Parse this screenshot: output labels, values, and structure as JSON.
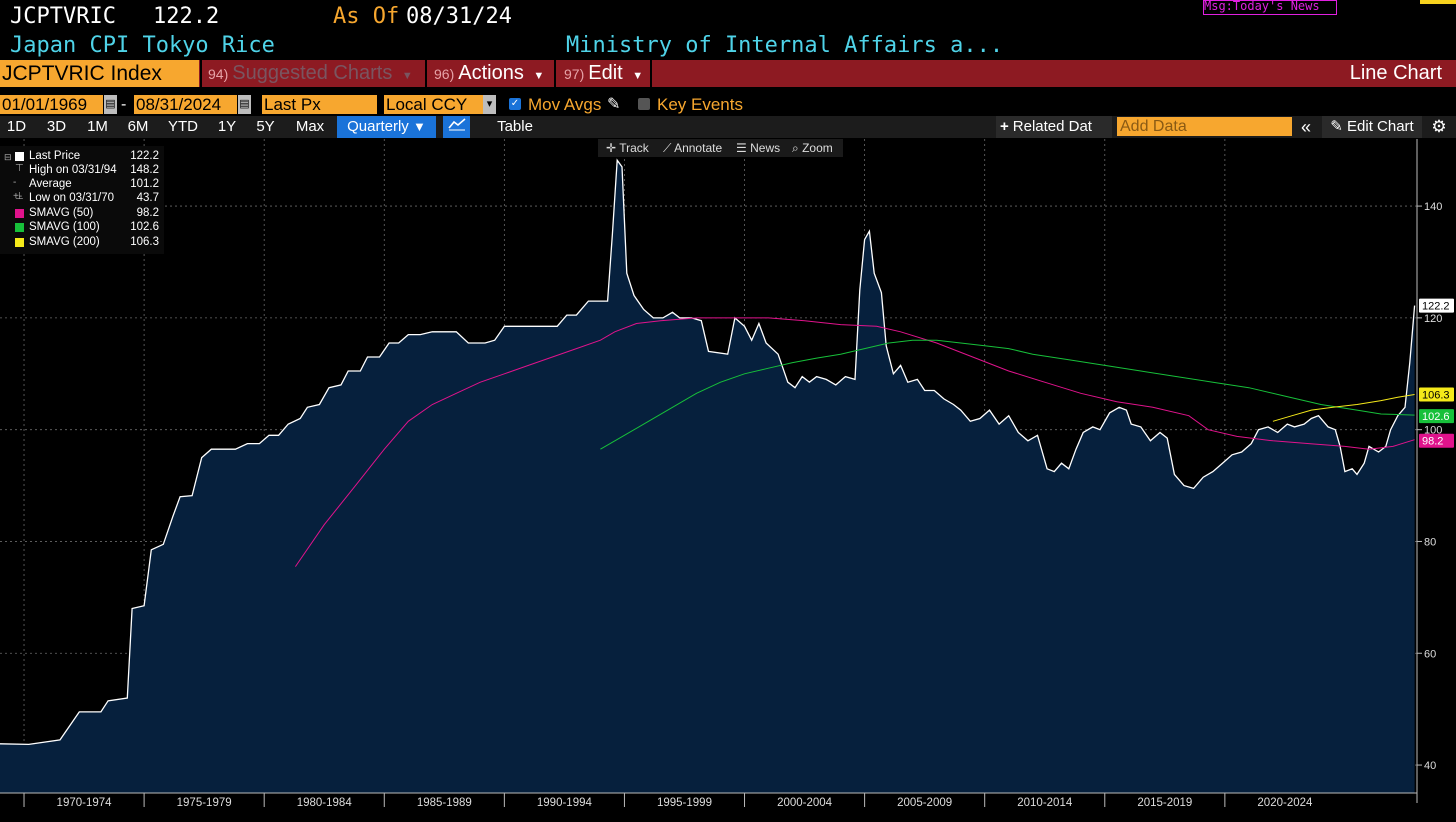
{
  "header": {
    "ticker": "JCPTVRIC",
    "last_value": "122.2",
    "as_of_label": "As Of",
    "as_of_date": "08/31/24",
    "description": "Japan CPI Tokyo Rice",
    "source": "Ministry of Internal Affairs a...",
    "message": "Msg:Today's News"
  },
  "toolbar": {
    "index_label": "JCPTVRIC Index",
    "suggested_num": "94)",
    "suggested_label": "Suggested Charts",
    "actions_num": "96)",
    "actions_label": "Actions",
    "edit_num": "97)",
    "edit_label": "Edit",
    "chart_type_label": "Line Chart"
  },
  "settings": {
    "start_date": "01/01/1969",
    "end_date": "08/31/2024",
    "field": "Last Px",
    "currency": "Local CCY",
    "mov_avgs_label": "Mov Avgs",
    "key_events_label": "Key Events"
  },
  "range_buttons": [
    "1D",
    "3D",
    "1M",
    "6M",
    "YTD",
    "1Y",
    "5Y",
    "Max"
  ],
  "frequency": "Quarterly",
  "table_label": "Table",
  "related_data_label": "Related Dat",
  "add_data_placeholder": "Add Data",
  "edit_chart_label": "Edit Chart",
  "chart_tools": {
    "track": "Track",
    "annotate": "Annotate",
    "news": "News",
    "zoom": "Zoom"
  },
  "legend": [
    {
      "label": "Last Price",
      "value": "122.2",
      "color": "#ffffff"
    },
    {
      "label": "High on 03/31/94",
      "value": "148.2",
      "color": ""
    },
    {
      "label": "Average",
      "value": "101.2",
      "color": ""
    },
    {
      "label": "Low on 03/31/70",
      "value": "43.7",
      "color": ""
    },
    {
      "label": "SMAVG (50)",
      "value": "98.2",
      "color": "#e0138c"
    },
    {
      "label": "SMAVG (100)",
      "value": "102.6",
      "color": "#17c03a"
    },
    {
      "label": "SMAVG (200)",
      "value": "106.3",
      "color": "#f5e91a"
    }
  ],
  "colors": {
    "area_fill": "#06203d",
    "price_line": "#ffffff",
    "sma50": "#e0138c",
    "sma100": "#17c03a",
    "sma200": "#f5e91a",
    "accent_orange": "#f7a72f",
    "toolbar_red": "#8d1a22"
  },
  "chart_data": {
    "type": "area",
    "ylim": [
      35,
      152
    ],
    "xlim": [
      1969.0,
      2025.9
    ],
    "y_ticks": [
      40,
      60,
      80,
      100,
      120,
      140
    ],
    "x_tick_labels": [
      "1970-1974",
      "1975-1979",
      "1980-1984",
      "1985-1989",
      "1990-1994",
      "1995-1999",
      "2000-2004",
      "2005-2009",
      "2010-2014",
      "2015-2019",
      "2020-2024"
    ],
    "x_tick_ranges": [
      [
        1970,
        1975
      ],
      [
        1975,
        1980
      ],
      [
        1980,
        1985
      ],
      [
        1985,
        1990
      ],
      [
        1990,
        1995
      ],
      [
        1995,
        2000
      ],
      [
        2000,
        2005
      ],
      [
        2005,
        2010
      ],
      [
        2010,
        2015
      ],
      [
        2015,
        2020
      ],
      [
        2020,
        2025
      ]
    ],
    "grid": true,
    "end_labels": [
      {
        "value": 122.2,
        "text": "122.2",
        "series": "Last Price"
      },
      {
        "value": 106.3,
        "text": "106.3",
        "series": "SMAVG (200)"
      },
      {
        "value": 102.6,
        "text": "102.6",
        "series": "SMAVG (100)"
      },
      {
        "value": 98.2,
        "text": "98.2",
        "series": "SMAVG (50)"
      }
    ],
    "series": [
      {
        "name": "Last Price",
        "points": [
          [
            1969.0,
            43.8
          ],
          [
            1970.2,
            43.7
          ],
          [
            1971.5,
            44.5
          ],
          [
            1972.3,
            49.5
          ],
          [
            1973.2,
            49.5
          ],
          [
            1973.5,
            51.5
          ],
          [
            1974.3,
            52.0
          ],
          [
            1974.5,
            68.0
          ],
          [
            1975.0,
            68.5
          ],
          [
            1975.3,
            78.5
          ],
          [
            1975.8,
            79.5
          ],
          [
            1976.2,
            84.5
          ],
          [
            1976.5,
            88.0
          ],
          [
            1977.0,
            88.2
          ],
          [
            1977.4,
            95.0
          ],
          [
            1977.8,
            96.5
          ],
          [
            1978.8,
            96.5
          ],
          [
            1979.3,
            97.5
          ],
          [
            1979.8,
            97.5
          ],
          [
            1980.2,
            99.0
          ],
          [
            1980.6,
            99.0
          ],
          [
            1981.0,
            101.0
          ],
          [
            1981.5,
            102.0
          ],
          [
            1981.8,
            104.0
          ],
          [
            1982.3,
            104.5
          ],
          [
            1982.7,
            107.5
          ],
          [
            1983.2,
            108.0
          ],
          [
            1983.5,
            110.5
          ],
          [
            1984.0,
            110.5
          ],
          [
            1984.3,
            113.0
          ],
          [
            1984.8,
            113.0
          ],
          [
            1985.2,
            115.5
          ],
          [
            1985.6,
            115.5
          ],
          [
            1986.0,
            117.0
          ],
          [
            1986.5,
            117.0
          ],
          [
            1987.0,
            117.5
          ],
          [
            1988.0,
            117.5
          ],
          [
            1988.5,
            115.5
          ],
          [
            1989.2,
            115.5
          ],
          [
            1989.6,
            116.0
          ],
          [
            1990.0,
            118.5
          ],
          [
            1990.5,
            118.5
          ],
          [
            1991.5,
            118.5
          ],
          [
            1992.2,
            118.5
          ],
          [
            1992.6,
            120.5
          ],
          [
            1993.0,
            120.5
          ],
          [
            1993.5,
            123.0
          ],
          [
            1994.3,
            123.0
          ],
          [
            1994.5,
            135.0
          ],
          [
            1994.7,
            148.2
          ],
          [
            1994.9,
            147.0
          ],
          [
            1995.1,
            128.0
          ],
          [
            1995.4,
            124.0
          ],
          [
            1995.8,
            121.5
          ],
          [
            1996.2,
            120.0
          ],
          [
            1996.6,
            120.0
          ],
          [
            1997.0,
            121.0
          ],
          [
            1997.3,
            120.0
          ],
          [
            1997.8,
            120.0
          ],
          [
            1998.2,
            119.5
          ],
          [
            1998.5,
            114.0
          ],
          [
            1999.3,
            113.5
          ],
          [
            1999.6,
            120.0
          ],
          [
            2000.0,
            118.5
          ],
          [
            2000.3,
            116.0
          ],
          [
            2000.6,
            119.0
          ],
          [
            2000.9,
            115.5
          ],
          [
            2001.4,
            113.5
          ],
          [
            2001.8,
            108.5
          ],
          [
            2002.1,
            107.5
          ],
          [
            2002.4,
            109.5
          ],
          [
            2002.7,
            108.5
          ],
          [
            2003.0,
            109.5
          ],
          [
            2003.4,
            109.0
          ],
          [
            2003.8,
            108.0
          ],
          [
            2004.2,
            109.5
          ],
          [
            2004.6,
            109.0
          ],
          [
            2004.8,
            125.0
          ],
          [
            2005.0,
            134.0
          ],
          [
            2005.2,
            135.5
          ],
          [
            2005.4,
            128.0
          ],
          [
            2005.7,
            124.5
          ],
          [
            2005.9,
            115.0
          ],
          [
            2006.2,
            110.0
          ],
          [
            2006.5,
            111.5
          ],
          [
            2006.8,
            108.5
          ],
          [
            2007.2,
            109.0
          ],
          [
            2007.5,
            107.0
          ],
          [
            2007.9,
            107.0
          ],
          [
            2008.3,
            105.5
          ],
          [
            2008.7,
            104.5
          ],
          [
            2009.0,
            103.5
          ],
          [
            2009.4,
            101.5
          ],
          [
            2009.8,
            102.0
          ],
          [
            2010.2,
            103.5
          ],
          [
            2010.6,
            101.0
          ],
          [
            2011.0,
            102.5
          ],
          [
            2011.4,
            99.5
          ],
          [
            2011.8,
            98.0
          ],
          [
            2012.2,
            99.0
          ],
          [
            2012.6,
            93.0
          ],
          [
            2012.9,
            92.5
          ],
          [
            2013.2,
            94.0
          ],
          [
            2013.5,
            93.0
          ],
          [
            2013.8,
            96.5
          ],
          [
            2014.1,
            99.5
          ],
          [
            2014.5,
            100.5
          ],
          [
            2014.8,
            100.0
          ],
          [
            2015.2,
            103.0
          ],
          [
            2015.6,
            104.0
          ],
          [
            2015.9,
            103.5
          ],
          [
            2016.1,
            101.0
          ],
          [
            2016.5,
            100.5
          ],
          [
            2016.9,
            98.0
          ],
          [
            2017.3,
            99.5
          ],
          [
            2017.6,
            98.5
          ],
          [
            2017.9,
            92.0
          ],
          [
            2018.3,
            90.0
          ],
          [
            2018.7,
            89.5
          ],
          [
            2019.1,
            91.5
          ],
          [
            2019.5,
            92.5
          ],
          [
            2019.9,
            94.0
          ],
          [
            2020.3,
            95.5
          ],
          [
            2020.7,
            96.0
          ],
          [
            2021.1,
            97.5
          ],
          [
            2021.4,
            100.0
          ],
          [
            2021.8,
            100.5
          ],
          [
            2022.2,
            99.5
          ],
          [
            2022.6,
            101.0
          ],
          [
            2022.9,
            100.5
          ],
          [
            2023.3,
            101.0
          ],
          [
            2023.6,
            102.0
          ],
          [
            2023.9,
            102.5
          ],
          [
            2024.3,
            100.5
          ],
          [
            2024.6,
            100.0
          ],
          [
            2024.8,
            97.0
          ],
          [
            2025.0,
            92.5
          ],
          [
            2025.3,
            93.0
          ],
          [
            2025.5,
            92.0
          ],
          [
            2025.8,
            94.0
          ],
          [
            2026.0,
            97.0
          ],
          [
            2026.4,
            96.0
          ],
          [
            2026.7,
            97.0
          ],
          [
            2026.9,
            100.0
          ],
          [
            2027.2,
            102.5
          ],
          [
            2027.5,
            104.0
          ],
          [
            2027.7,
            112.0
          ],
          [
            2027.9,
            122.2
          ]
        ]
      },
      {
        "name": "SMAVG (50)",
        "points": [
          [
            1981.3,
            75.5
          ],
          [
            1982.5,
            83.0
          ],
          [
            1983.8,
            90.0
          ],
          [
            1985.0,
            96.5
          ],
          [
            1986.0,
            101.5
          ],
          [
            1987.0,
            104.5
          ],
          [
            1988.0,
            106.5
          ],
          [
            1989.0,
            108.5
          ],
          [
            1990.0,
            110.0
          ],
          [
            1991.0,
            111.5
          ],
          [
            1992.0,
            113.0
          ],
          [
            1993.0,
            114.5
          ],
          [
            1994.0,
            116.0
          ],
          [
            1994.6,
            117.5
          ],
          [
            1995.5,
            119.0
          ],
          [
            1996.5,
            119.5
          ],
          [
            1998.0,
            120.0
          ],
          [
            1999.5,
            120.0
          ],
          [
            2001.0,
            120.0
          ],
          [
            2002.5,
            119.5
          ],
          [
            2004.0,
            118.8
          ],
          [
            2005.5,
            118.5
          ],
          [
            2006.5,
            117.5
          ],
          [
            2008.0,
            115.5
          ],
          [
            2009.5,
            113.0
          ],
          [
            2011.0,
            110.5
          ],
          [
            2012.5,
            108.5
          ],
          [
            2014.0,
            106.5
          ],
          [
            2015.5,
            105.0
          ],
          [
            2017.0,
            104.0
          ],
          [
            2018.5,
            102.5
          ],
          [
            2019.3,
            100.0
          ],
          [
            2020.5,
            98.8
          ],
          [
            2022.0,
            98.0
          ],
          [
            2023.5,
            97.5
          ],
          [
            2025.0,
            97.0
          ],
          [
            2026.0,
            96.5
          ],
          [
            2027.0,
            97.0
          ],
          [
            2027.9,
            98.2
          ]
        ]
      },
      {
        "name": "SMAVG (100)",
        "points": [
          [
            1994.0,
            96.5
          ],
          [
            1995.0,
            99.0
          ],
          [
            1996.0,
            101.5
          ],
          [
            1997.0,
            104.0
          ],
          [
            1998.0,
            106.5
          ],
          [
            1999.0,
            108.5
          ],
          [
            2000.0,
            110.0
          ],
          [
            2001.0,
            111.0
          ],
          [
            2002.0,
            112.0
          ],
          [
            2003.0,
            112.8
          ],
          [
            2004.0,
            113.5
          ],
          [
            2005.0,
            114.5
          ],
          [
            2006.0,
            115.5
          ],
          [
            2007.0,
            116.0
          ],
          [
            2008.0,
            116.0
          ],
          [
            2009.0,
            115.5
          ],
          [
            2010.0,
            115.0
          ],
          [
            2011.0,
            114.5
          ],
          [
            2012.0,
            113.5
          ],
          [
            2013.5,
            112.5
          ],
          [
            2015.0,
            111.5
          ],
          [
            2016.5,
            110.5
          ],
          [
            2018.0,
            109.5
          ],
          [
            2019.5,
            108.5
          ],
          [
            2021.0,
            107.5
          ],
          [
            2022.5,
            106.0
          ],
          [
            2024.0,
            104.5
          ],
          [
            2025.5,
            103.5
          ],
          [
            2026.5,
            102.8
          ],
          [
            2027.9,
            102.6
          ]
        ]
      },
      {
        "name": "SMAVG (200)",
        "points": [
          [
            2022.0,
            101.5
          ],
          [
            2022.8,
            102.5
          ],
          [
            2023.6,
            103.5
          ],
          [
            2024.5,
            104.0
          ],
          [
            2025.5,
            104.5
          ],
          [
            2026.5,
            105.2
          ],
          [
            2027.2,
            105.8
          ],
          [
            2027.9,
            106.3
          ]
        ]
      }
    ]
  }
}
